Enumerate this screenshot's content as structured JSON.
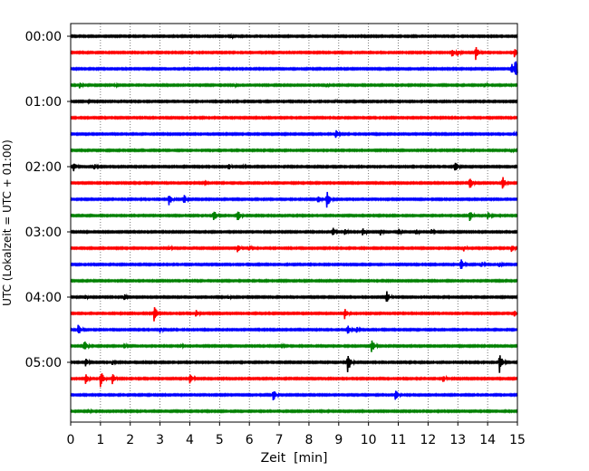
{
  "chart_data": {
    "type": "line",
    "title": "",
    "xlabel": "Zeit  [min]",
    "ylabel": "UTC (Lokalzeit = UTC + 01:00)",
    "xlim": [
      0,
      15
    ],
    "x_ticks": [
      "0",
      "1",
      "2",
      "3",
      "4",
      "5",
      "6",
      "7",
      "8",
      "9",
      "10",
      "11",
      "12",
      "13",
      "14",
      "15"
    ],
    "y_tick_labels": [
      "00:00",
      "01:00",
      "02:00",
      "03:00",
      "04:00",
      "05:00"
    ],
    "grid": "vertical dotted lines at each minute",
    "trace_colors": [
      "#000000",
      "#ff0000",
      "#0000ff",
      "#008000"
    ],
    "series": [
      {
        "start": "00:00",
        "events": [
          [
            5.4,
            0.15
          ]
        ]
      },
      {
        "start": "00:15",
        "events": [
          [
            12.8,
            0.5
          ],
          [
            13.0,
            0.3
          ],
          [
            13.6,
            0.75
          ],
          [
            14.9,
            0.45
          ]
        ]
      },
      {
        "start": "00:30",
        "events": [
          [
            14.8,
            0.6
          ],
          [
            14.92,
            1.0
          ]
        ]
      },
      {
        "start": "00:45",
        "events": [
          [
            0.3,
            0.3
          ],
          [
            1.5,
            0.15
          ],
          [
            5.5,
            0.15
          ],
          [
            8.6,
            0.2
          ],
          [
            13.9,
            0.25
          ]
        ]
      },
      {
        "start": "01:00",
        "events": [
          [
            0.6,
            0.12
          ],
          [
            8.9,
            0.15
          ]
        ]
      },
      {
        "start": "01:15",
        "events": []
      },
      {
        "start": "01:30",
        "events": [
          [
            8.9,
            0.45
          ],
          [
            14.9,
            0.2
          ]
        ]
      },
      {
        "start": "01:45",
        "events": [
          [
            14.8,
            0.25
          ]
        ]
      },
      {
        "start": "02:00",
        "events": [
          [
            0.1,
            0.5
          ],
          [
            0.8,
            0.3
          ],
          [
            5.3,
            0.35
          ],
          [
            5.8,
            0.2
          ],
          [
            12.9,
            0.6
          ]
        ]
      },
      {
        "start": "02:15",
        "events": [
          [
            4.5,
            0.15
          ],
          [
            13.4,
            0.65
          ],
          [
            14.5,
            0.65
          ]
        ]
      },
      {
        "start": "02:30",
        "events": [
          [
            3.3,
            0.65
          ],
          [
            3.8,
            0.5
          ],
          [
            8.6,
            0.9
          ],
          [
            8.3,
            0.4
          ]
        ]
      },
      {
        "start": "02:45",
        "events": [
          [
            4.8,
            0.75
          ],
          [
            5.6,
            0.6
          ],
          [
            13.4,
            0.55
          ],
          [
            14.0,
            0.45
          ]
        ]
      },
      {
        "start": "03:00",
        "events": [
          [
            8.8,
            0.45
          ],
          [
            9.2,
            0.4
          ],
          [
            9.8,
            0.45
          ],
          [
            10.4,
            0.35
          ],
          [
            11.0,
            0.35
          ],
          [
            11.6,
            0.35
          ],
          [
            12.1,
            0.3
          ]
        ]
      },
      {
        "start": "03:15",
        "events": [
          [
            3.3,
            0.25
          ],
          [
            5.6,
            0.45
          ],
          [
            6.0,
            0.3
          ],
          [
            13.2,
            0.3
          ],
          [
            14.8,
            0.45
          ]
        ]
      },
      {
        "start": "03:30",
        "events": [
          [
            13.1,
            0.6
          ],
          [
            13.8,
            0.3
          ],
          [
            14.4,
            0.25
          ]
        ]
      },
      {
        "start": "03:45",
        "events": []
      },
      {
        "start": "04:00",
        "events": [
          [
            0.5,
            0.2
          ],
          [
            1.8,
            0.35
          ],
          [
            5.3,
            0.2
          ],
          [
            10.6,
            0.65
          ]
        ]
      },
      {
        "start": "04:15",
        "events": [
          [
            2.8,
            0.85
          ],
          [
            4.2,
            0.4
          ],
          [
            9.2,
            0.55
          ],
          [
            14.9,
            0.35
          ]
        ]
      },
      {
        "start": "04:30",
        "events": [
          [
            0.25,
            0.6
          ],
          [
            3.0,
            0.3
          ],
          [
            9.3,
            0.5
          ],
          [
            9.6,
            0.3
          ]
        ]
      },
      {
        "start": "04:45",
        "events": [
          [
            0.45,
            0.6
          ],
          [
            1.8,
            0.3
          ],
          [
            3.7,
            0.2
          ],
          [
            10.1,
            0.75
          ],
          [
            7.1,
            0.2
          ]
        ]
      },
      {
        "start": "05:00",
        "events": [
          [
            0.5,
            0.4
          ],
          [
            1.4,
            0.25
          ],
          [
            9.3,
            1.0
          ],
          [
            14.4,
            1.0
          ]
        ]
      },
      {
        "start": "05:15",
        "events": [
          [
            0.5,
            0.55
          ],
          [
            1.0,
            0.85
          ],
          [
            1.4,
            0.6
          ],
          [
            4.0,
            0.6
          ],
          [
            12.5,
            0.4
          ]
        ]
      },
      {
        "start": "05:30",
        "events": [
          [
            6.8,
            0.6
          ],
          [
            10.9,
            0.6
          ]
        ]
      },
      {
        "start": "05:45",
        "events": [
          [
            0.6,
            0.2
          ]
        ]
      }
    ]
  }
}
